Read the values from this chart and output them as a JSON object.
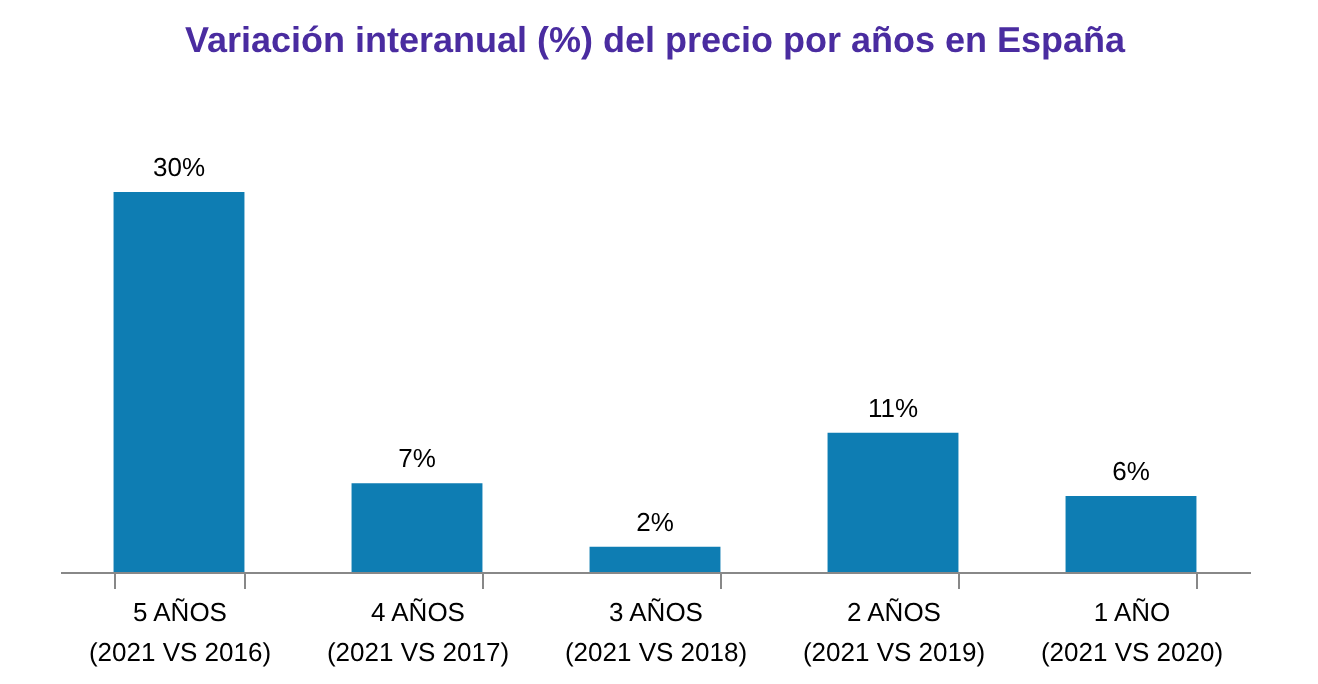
{
  "chart_data": {
    "type": "bar",
    "title": "Variación interanual (%) del precio por años en España",
    "categories": [
      "5 AÑOS\n(2021 VS 2016)",
      "4 AÑOS\n(2021 VS 2017)",
      "3 AÑOS\n(2021 VS 2018)",
      "2 AÑOS\n(2021 VS 2019)",
      "1 AÑO\n(2021 VS 2020)"
    ],
    "values": [
      30,
      7,
      2,
      11,
      6
    ],
    "value_labels": [
      "30%",
      "7%",
      "2%",
      "11%",
      "6%"
    ],
    "color": "#0e7db3",
    "tick_labels": "x",
    "grid": false
  }
}
